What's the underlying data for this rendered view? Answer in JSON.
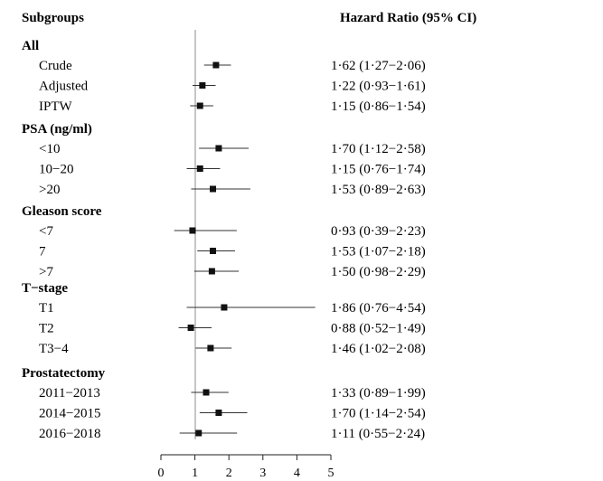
{
  "chart_data": {
    "type": "forest",
    "headers": {
      "left": "Subgroups",
      "right": "Hazard Ratio (95% CI)"
    },
    "x_axis": {
      "ticks": [
        0,
        1,
        2,
        3,
        4,
        5
      ],
      "xlim": [
        0,
        5
      ],
      "reference_line": 1
    },
    "groups": [
      {
        "label": "All",
        "rows": [
          {
            "label": "Crude",
            "hr": 1.62,
            "lo": 1.27,
            "hi": 2.06,
            "text": "1·62 (1·27−2·06)"
          },
          {
            "label": "Adjusted",
            "hr": 1.22,
            "lo": 0.93,
            "hi": 1.61,
            "text": "1·22 (0·93−1·61)"
          },
          {
            "label": "IPTW",
            "hr": 1.15,
            "lo": 0.86,
            "hi": 1.54,
            "text": "1·15 (0·86−1·54)"
          }
        ]
      },
      {
        "label": "PSA (ng/ml)",
        "rows": [
          {
            "label": "<10",
            "hr": 1.7,
            "lo": 1.12,
            "hi": 2.58,
            "text": "1·70 (1·12−2·58)"
          },
          {
            "label": "10−20",
            "hr": 1.15,
            "lo": 0.76,
            "hi": 1.74,
            "text": "1·15 (0·76−1·74)"
          },
          {
            "label": ">20",
            "hr": 1.53,
            "lo": 0.89,
            "hi": 2.63,
            "text": "1·53 (0·89−2·63)"
          }
        ]
      },
      {
        "label": "Gleason score",
        "rows": [
          {
            "label": "<7",
            "hr": 0.93,
            "lo": 0.39,
            "hi": 2.23,
            "text": "0·93 (0·39−2·23)"
          },
          {
            "label": "7",
            "hr": 1.53,
            "lo": 1.07,
            "hi": 2.18,
            "text": "1·53 (1·07−2·18)"
          },
          {
            "label": ">7",
            "hr": 1.5,
            "lo": 0.98,
            "hi": 2.29,
            "text": "1·50 (0·98−2·29)"
          }
        ]
      },
      {
        "label": "T−stage",
        "rows": [
          {
            "label": "T1",
            "hr": 1.86,
            "lo": 0.76,
            "hi": 4.54,
            "text": "1·86 (0·76−4·54)"
          },
          {
            "label": "T2",
            "hr": 0.88,
            "lo": 0.52,
            "hi": 1.49,
            "text": "0·88 (0·52−1·49)"
          },
          {
            "label": "T3−4",
            "hr": 1.46,
            "lo": 1.02,
            "hi": 2.08,
            "text": "1·46 (1·02−2·08)"
          }
        ]
      },
      {
        "label": "Prostatectomy",
        "rows": [
          {
            "label": "2011−2013",
            "hr": 1.33,
            "lo": 0.89,
            "hi": 1.99,
            "text": "1·33 (0·89−1·99)"
          },
          {
            "label": "2014−2015",
            "hr": 1.7,
            "lo": 1.14,
            "hi": 2.54,
            "text": "1·70 (1·14−2·54)"
          },
          {
            "label": "2016−2018",
            "hr": 1.11,
            "lo": 0.55,
            "hi": 2.24,
            "text": "1·11 (0·55−2·24)"
          }
        ]
      }
    ]
  }
}
